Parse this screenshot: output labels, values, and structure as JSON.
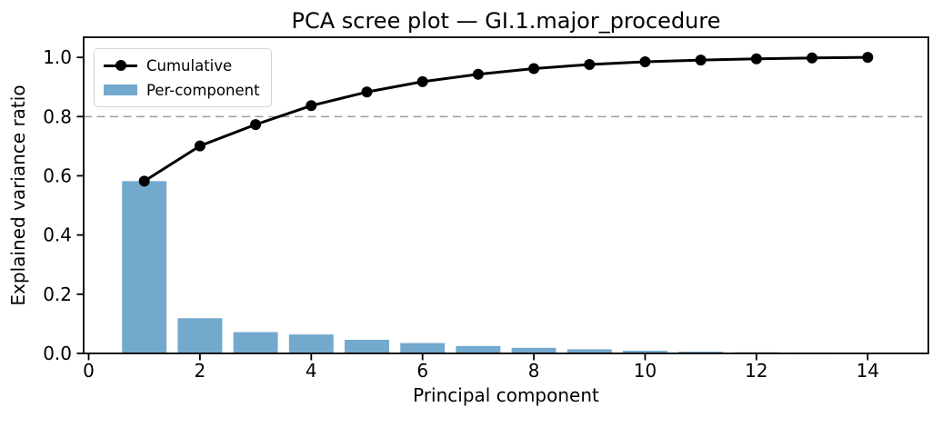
{
  "chart_data": {
    "type": "bar+line",
    "title": "PCA scree plot — GI.1.major_procedure",
    "xlabel": "Principal component",
    "ylabel": "Explained variance ratio",
    "x": [
      1,
      2,
      3,
      4,
      5,
      6,
      7,
      8,
      9,
      10,
      11,
      12,
      13,
      14
    ],
    "series": [
      {
        "name": "Cumulative",
        "type": "line",
        "color": "#000000",
        "values": [
          0.582,
          0.701,
          0.773,
          0.837,
          0.883,
          0.918,
          0.943,
          0.962,
          0.976,
          0.985,
          0.991,
          0.995,
          0.998,
          1.0
        ]
      },
      {
        "name": "Per-component",
        "type": "bar",
        "color": "#74a9ce",
        "values": [
          0.582,
          0.119,
          0.072,
          0.064,
          0.046,
          0.035,
          0.025,
          0.019,
          0.014,
          0.009,
          0.006,
          0.004,
          0.003,
          0.002
        ]
      }
    ],
    "threshold_line": {
      "y": 0.8,
      "style": "dashed",
      "color": "#9e9e9e"
    },
    "xlim": [
      -0.09,
      15.09
    ],
    "ylim": [
      0,
      1.068
    ],
    "xticks": {
      "values": [
        0,
        2,
        4,
        6,
        8,
        10,
        12,
        14
      ],
      "labels": [
        "0",
        "2",
        "4",
        "6",
        "8",
        "10",
        "12",
        "14"
      ]
    },
    "yticks": {
      "values": [
        0,
        0.2,
        0.4,
        0.6,
        0.8,
        1.0
      ],
      "labels": [
        "0.0",
        "0.2",
        "0.4",
        "0.6",
        "0.8",
        "1.0"
      ]
    },
    "legend": {
      "position": "upper-left"
    },
    "grid": false,
    "bar_width": 0.8,
    "axis_color": "#000000"
  }
}
